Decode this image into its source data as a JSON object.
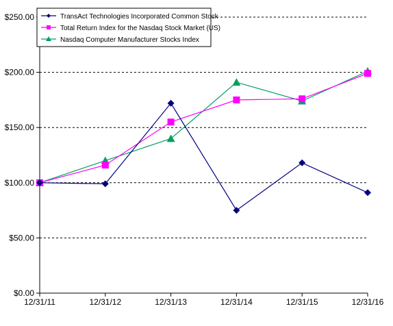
{
  "chart_data": {
    "type": "line",
    "title": "",
    "xlabel": "",
    "ylabel": "",
    "categories": [
      "12/31/11",
      "12/31/12",
      "12/31/13",
      "12/31/14",
      "12/31/15",
      "12/31/16"
    ],
    "ylim": [
      0,
      250
    ],
    "y_ticks": [
      0,
      50,
      100,
      150,
      200,
      250
    ],
    "y_tick_labels": [
      "$0.00",
      "$50.00",
      "$100.00",
      "$150.00",
      "$200.00",
      "$250.00"
    ],
    "grid": "horizontal dashed",
    "legend_position": "top-left",
    "series": [
      {
        "name": "TransAct Technologies Incorporated Common Stock",
        "values": [
          100,
          99,
          172,
          75,
          118,
          91
        ],
        "color": "#000080",
        "marker": "diamond"
      },
      {
        "name": "Total Return Index for the Nasdaq Stock Market (US)",
        "values": [
          100,
          116,
          155,
          175,
          176,
          199
        ],
        "color": "#ff00ff",
        "marker": "square"
      },
      {
        "name": "Nasdaq Computer Manufacturer Stocks Index",
        "values": [
          100,
          120,
          140,
          191,
          174,
          201
        ],
        "color": "#00a060",
        "marker": "triangle"
      }
    ]
  }
}
